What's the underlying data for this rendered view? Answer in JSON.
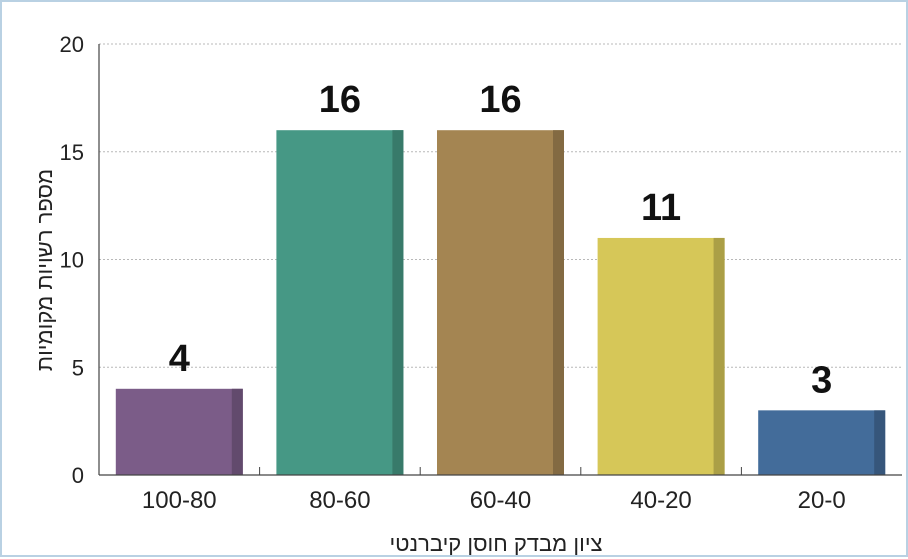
{
  "chart_data": {
    "type": "bar",
    "categories": [
      "100-80",
      "80-60",
      "60-40",
      "40-20",
      "20-0"
    ],
    "values": [
      4,
      16,
      16,
      11,
      3
    ],
    "colors": [
      "#7b5c88",
      "#469885",
      "#a48552",
      "#d6c758",
      "#436c9a"
    ],
    "title": "",
    "xlabel": "ציון מבדק חוסן קיברנטי",
    "ylabel": "מספר רשויות מקומיות",
    "ylim": [
      0,
      20
    ],
    "yticks": [
      0,
      5,
      10,
      15,
      20
    ],
    "grid": true,
    "data_labels": true
  }
}
